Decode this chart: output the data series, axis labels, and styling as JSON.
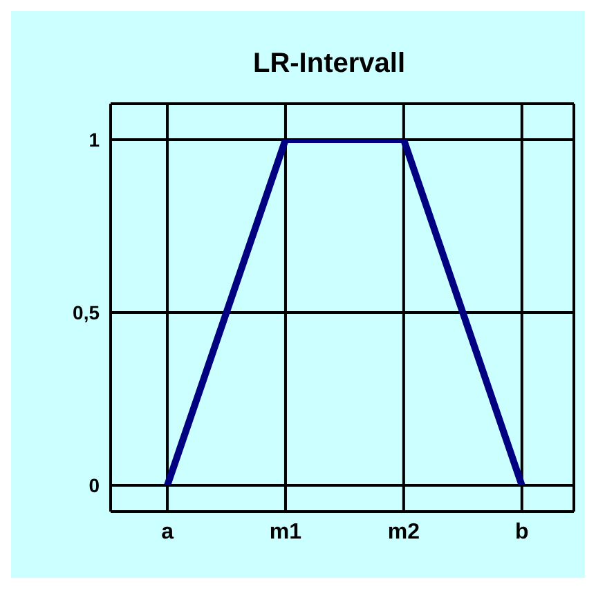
{
  "chart_data": {
    "type": "line",
    "title": "LR-Intervall",
    "categories": [
      "a",
      "m1",
      "m2",
      "b"
    ],
    "series": [
      {
        "color": "#000080",
        "values": [
          0,
          1,
          1,
          0
        ]
      }
    ],
    "ylim": [
      0,
      1
    ],
    "yticks": [
      0,
      {
        "value": 0.5,
        "label": "0,5"
      },
      1
    ],
    "grid": true,
    "marker": "none",
    "line_style": "solid"
  }
}
